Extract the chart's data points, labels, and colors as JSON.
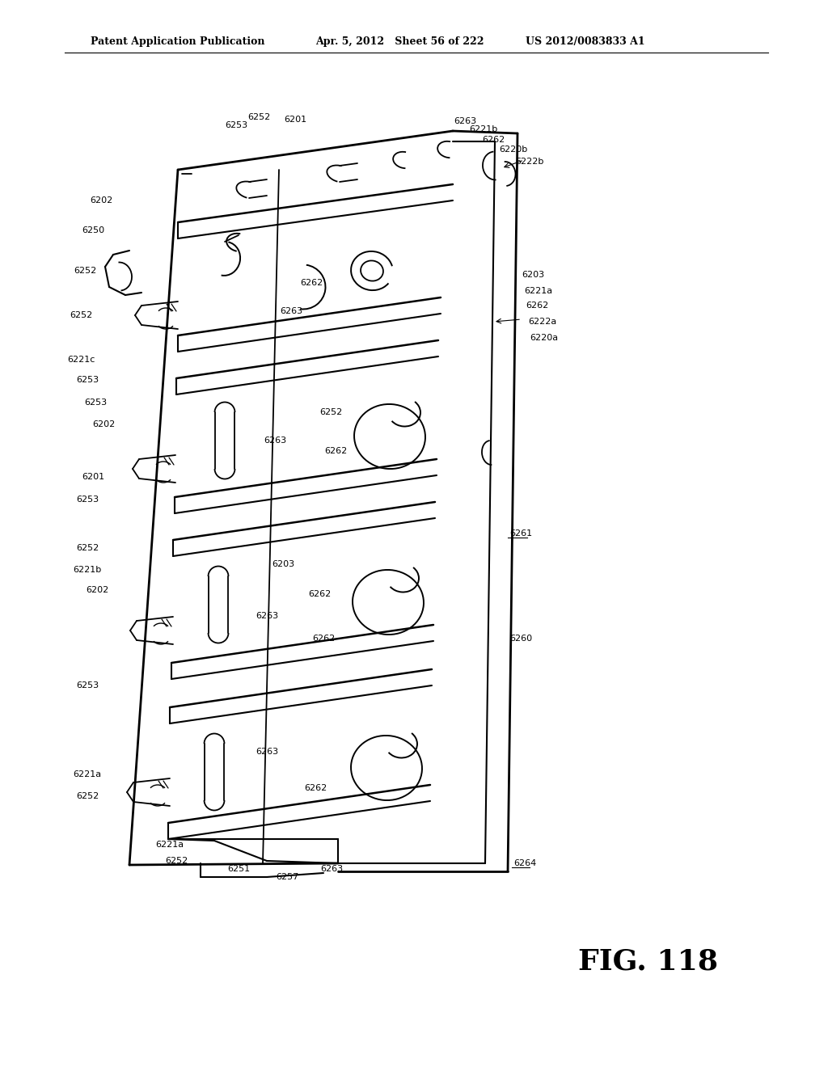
{
  "title_left": "Patent Application Publication",
  "title_center": "Apr. 5, 2012   Sheet 56 of 222",
  "title_right": "US 2012/0083833 A1",
  "fig_label": "FIG. 118",
  "bg_color": "#ffffff",
  "line_color": "#000000"
}
